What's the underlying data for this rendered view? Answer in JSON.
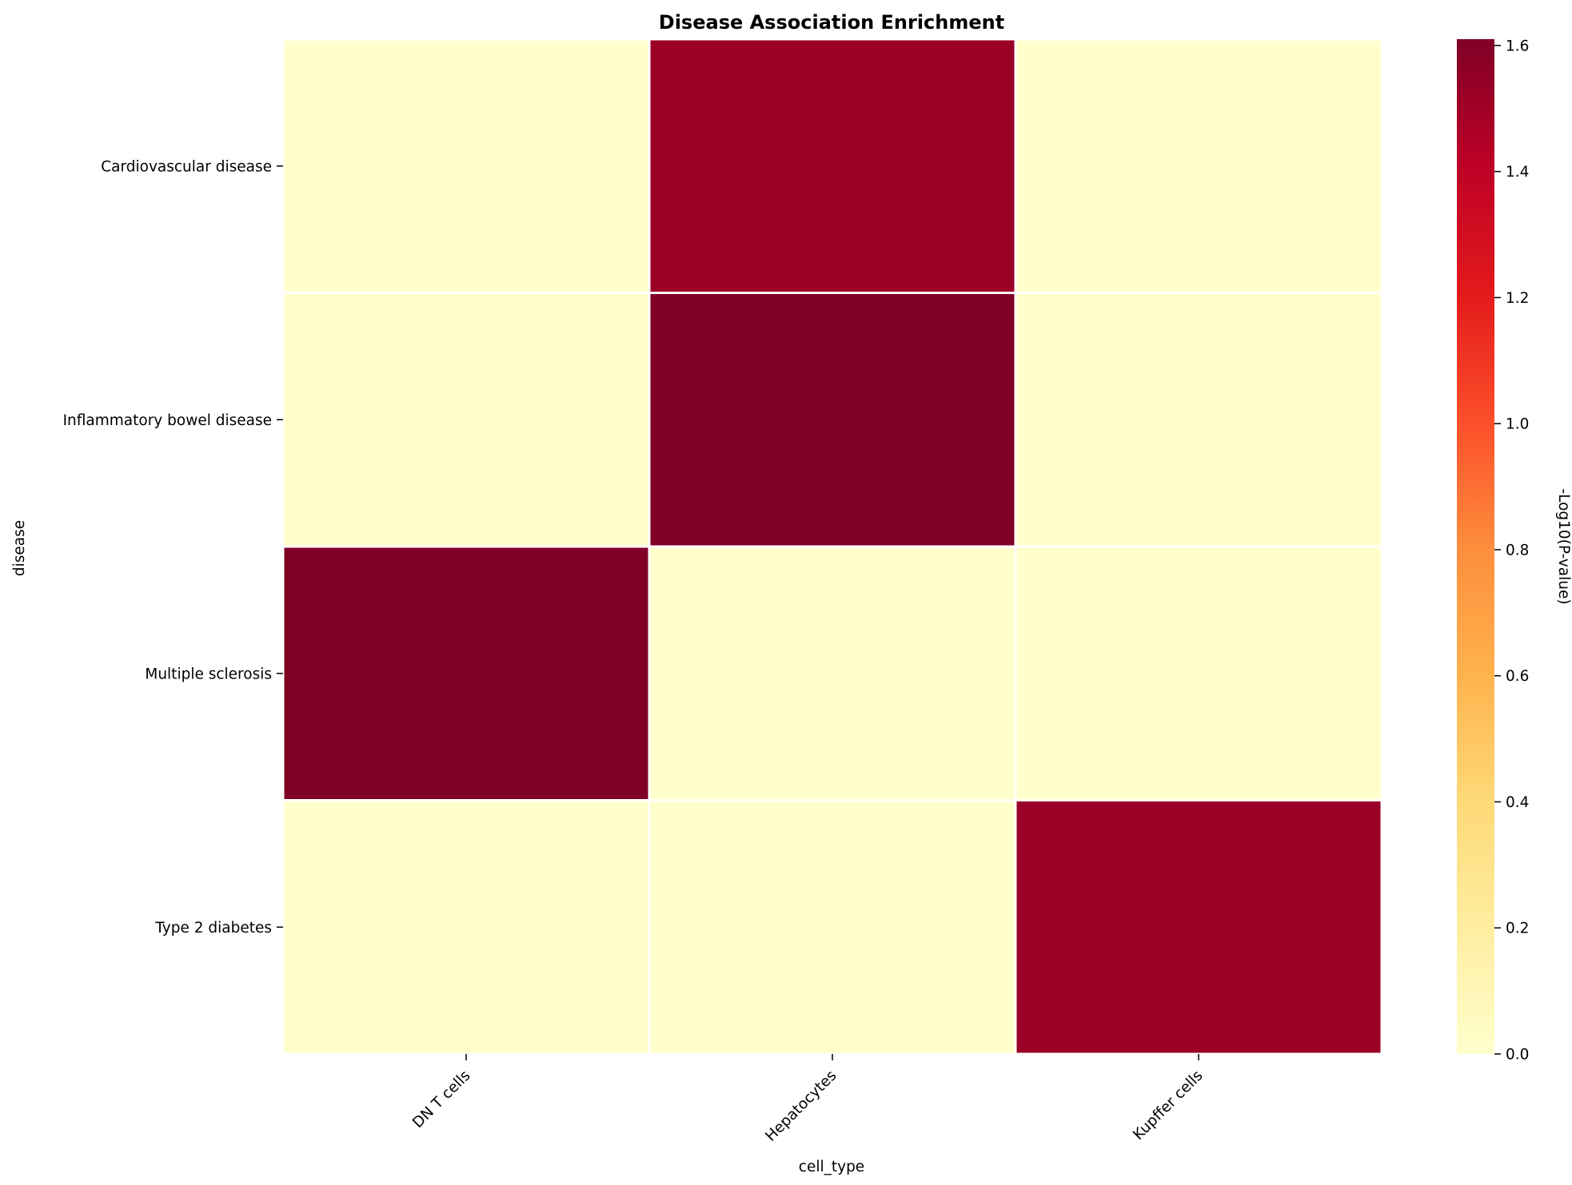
{
  "chart_data": {
    "type": "heatmap",
    "title": "Disease Association Enrichment",
    "xlabel": "cell_type",
    "ylabel": "disease",
    "x_categories": [
      "DN T cells",
      "Hepatocytes",
      "Kupffer cells"
    ],
    "y_categories": [
      "Cardiovascular disease",
      "Inflammatory bowel disease",
      "Multiple sclerosis",
      "Type 2 diabetes"
    ],
    "values": [
      [
        0.0,
        1.52,
        0.0
      ],
      [
        0.0,
        1.61,
        0.0
      ],
      [
        1.61,
        0.0,
        0.0
      ],
      [
        0.0,
        0.0,
        1.52
      ]
    ],
    "colorbar": {
      "label": "-Log10(P-value)",
      "colormap": "YlOrRd",
      "range": [
        0.0,
        1.61
      ],
      "ticks": [
        0.0,
        0.2,
        0.4,
        0.6,
        0.8,
        1.0,
        1.2,
        1.4,
        1.6
      ],
      "tick_labels": [
        "0.0",
        "0.2",
        "0.4",
        "0.6",
        "0.8",
        "1.0",
        "1.2",
        "1.4",
        "1.6"
      ]
    },
    "cell_border_color": "#ffffff",
    "grid": false
  }
}
